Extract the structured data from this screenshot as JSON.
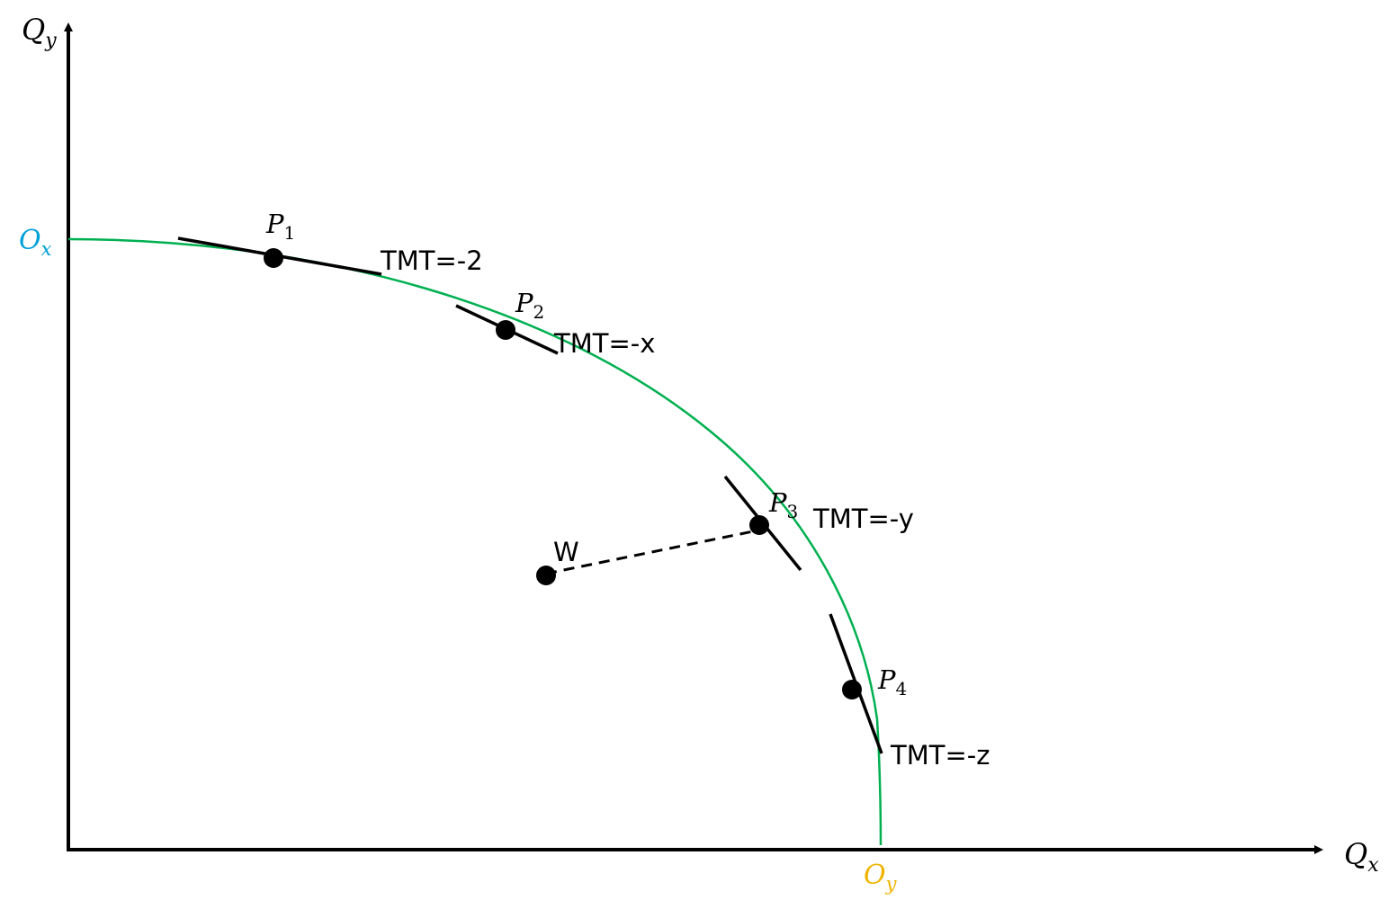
{
  "axes": {
    "y_label": {
      "main": "Q",
      "sub": "y"
    },
    "x_label": {
      "main": "Q",
      "sub": "x"
    }
  },
  "intercepts": {
    "y_axis": {
      "main": "O",
      "sub": "x",
      "color": "#00a0d8"
    },
    "x_axis": {
      "main": "O",
      "sub": "y",
      "color": "#f0b400"
    }
  },
  "curve": {
    "color": "#00b050"
  },
  "points": [
    {
      "main": "P",
      "sub": "1",
      "tmt": "TMT=-2"
    },
    {
      "main": "P",
      "sub": "2",
      "tmt": "TMT=-x"
    },
    {
      "main": "P",
      "sub": "3",
      "tmt": "TMT=-y"
    },
    {
      "main": "P",
      "sub": "4",
      "tmt": "TMT=-z"
    }
  ],
  "w_point": {
    "label": "W"
  }
}
